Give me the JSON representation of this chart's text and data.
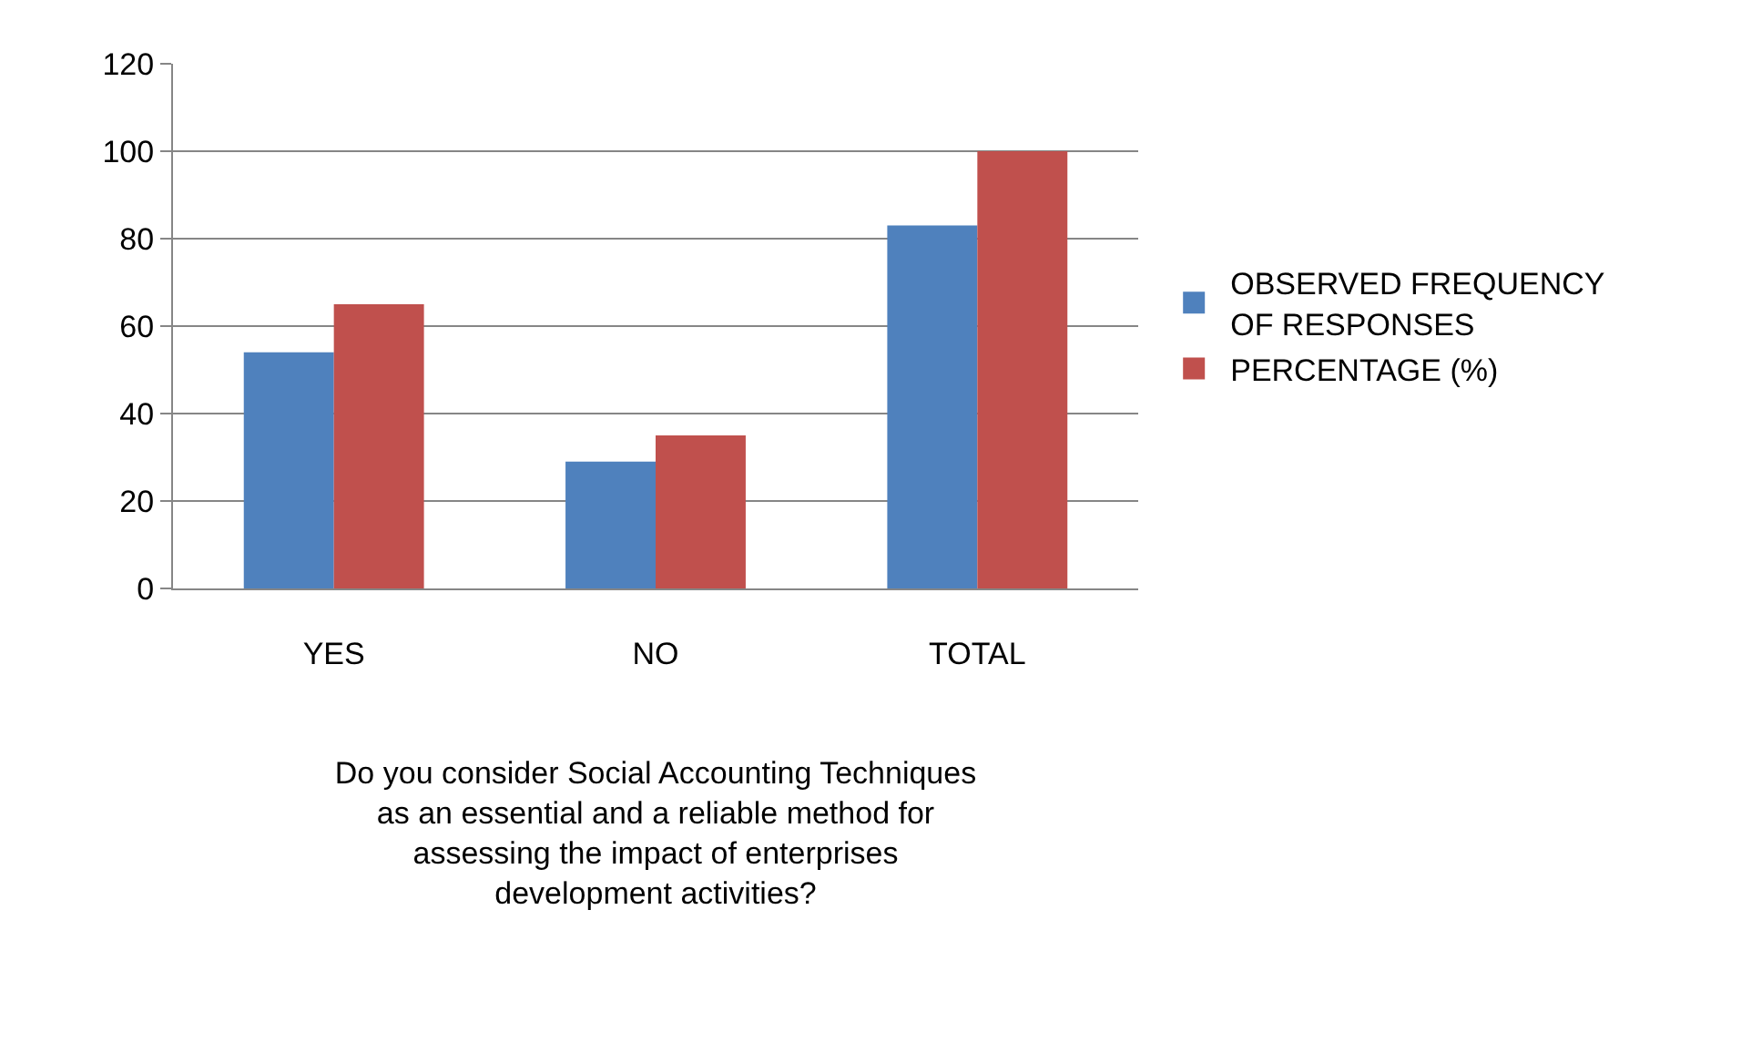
{
  "chart_data": {
    "type": "bar",
    "categories": [
      "YES",
      "NO",
      "TOTAL"
    ],
    "series": [
      {
        "name": "OBSERVED FREQUENCY OF RESPONSES",
        "color": "#4f81bd",
        "values": [
          54,
          29,
          83
        ]
      },
      {
        "name": "PERCENTAGE (%)",
        "color": "#c0504d",
        "values": [
          65,
          35,
          100
        ]
      }
    ],
    "xlabel": "Do you consider Social Accounting Techniques as an essential and a reliable method for assessing the impact of enterprises development activities?",
    "ylim": [
      0,
      120
    ],
    "yticks": [
      0,
      20,
      40,
      60,
      80,
      100,
      120
    ],
    "grid": "y",
    "legend": "right"
  }
}
